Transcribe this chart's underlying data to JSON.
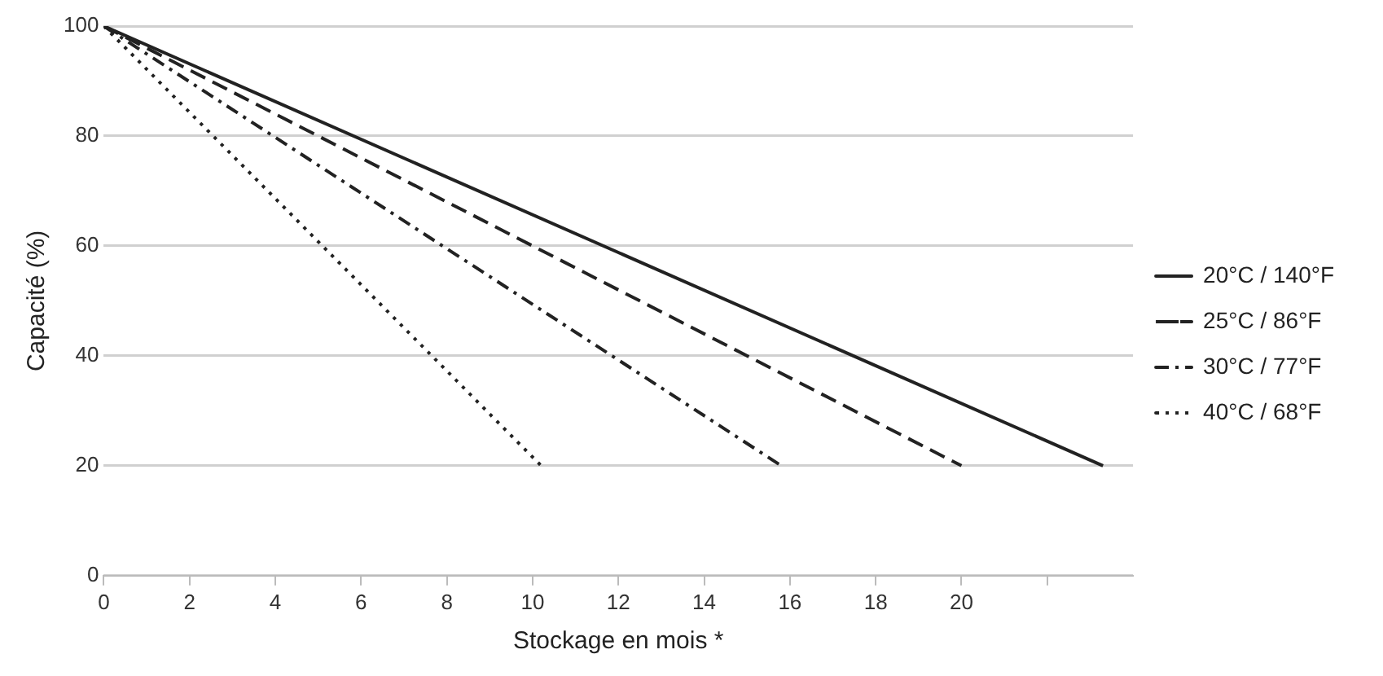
{
  "chart_data": {
    "type": "line",
    "xlabel": "Stockage en mois *",
    "ylabel": "Capacité (%)",
    "xlim": [
      0,
      24
    ],
    "xticks": [
      0,
      2,
      4,
      6,
      8,
      10,
      12,
      14,
      16,
      18,
      20,
      {
        "value": 22,
        "label": null
      }
    ],
    "ylim": [
      0,
      100
    ],
    "yticks": [
      0,
      20,
      40,
      60,
      80,
      100
    ],
    "grid": "y",
    "legend": "right",
    "marker": "none",
    "series": [
      {
        "name": "20°C / 140°F",
        "color": "#222222",
        "line_style": "solid",
        "x": [
          0,
          23.3
        ],
        "values": [
          100,
          20
        ]
      },
      {
        "name": "25°C / 86°F",
        "color": "#222222",
        "line_style": "dashed",
        "x": [
          0,
          20
        ],
        "values": [
          100,
          20
        ]
      },
      {
        "name": "30°C / 77°F",
        "color": "#222222",
        "line_style": "dashdot",
        "x": [
          0,
          15.8
        ],
        "values": [
          100,
          20
        ]
      },
      {
        "name": "40°C / 68°F",
        "color": "#222222",
        "line_style": "dotted",
        "x": [
          0,
          10.2
        ],
        "values": [
          100,
          20
        ]
      }
    ]
  }
}
